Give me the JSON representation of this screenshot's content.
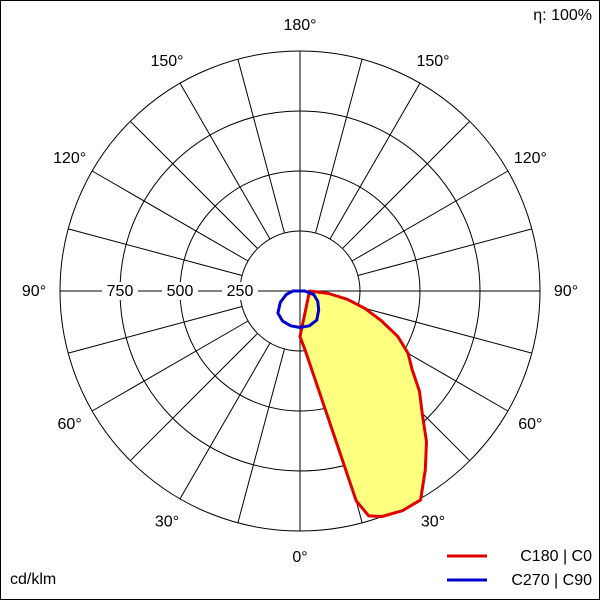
{
  "chart_data": {
    "type": "polar",
    "efficiency_label": "η: 100%",
    "unit_label": "cd/klm",
    "rlim": [
      0,
      1000
    ],
    "rticks": [
      250,
      500,
      750
    ],
    "angle_grid_step": 15,
    "angle_ticks": [
      {
        "value": 0,
        "label": "0°"
      },
      {
        "value": 30,
        "label": "30°"
      },
      {
        "value": 60,
        "label": "60°"
      },
      {
        "value": 90,
        "label": "90°"
      },
      {
        "value": 120,
        "label": "120°"
      },
      {
        "value": 150,
        "label": "150°"
      },
      {
        "value": 180,
        "label": "180°"
      }
    ],
    "series": [
      {
        "name": "C180 | C0",
        "color": "#e00000",
        "fill": "#ffff80",
        "angles": [
          0,
          5,
          10,
          12,
          15,
          17,
          20,
          25,
          30,
          35,
          40,
          45,
          50,
          55,
          60,
          65,
          70,
          75,
          80,
          85,
          90
        ],
        "values": [
          190,
          248,
          388,
          500,
          905,
          980,
          1000,
          1010,
          1005,
          910,
          820,
          720,
          650,
          570,
          520,
          450,
          360,
          280,
          200,
          120,
          40
        ]
      },
      {
        "name": "C270 | C90",
        "color": "#0000cc",
        "angles": [
          -90,
          -75,
          -60,
          -45,
          -30,
          -15,
          0,
          15,
          30,
          45,
          60,
          75,
          90
        ],
        "values": [
          30,
          60,
          95,
          130,
          145,
          150,
          152,
          150,
          140,
          110,
          85,
          60,
          20
        ]
      }
    ]
  }
}
